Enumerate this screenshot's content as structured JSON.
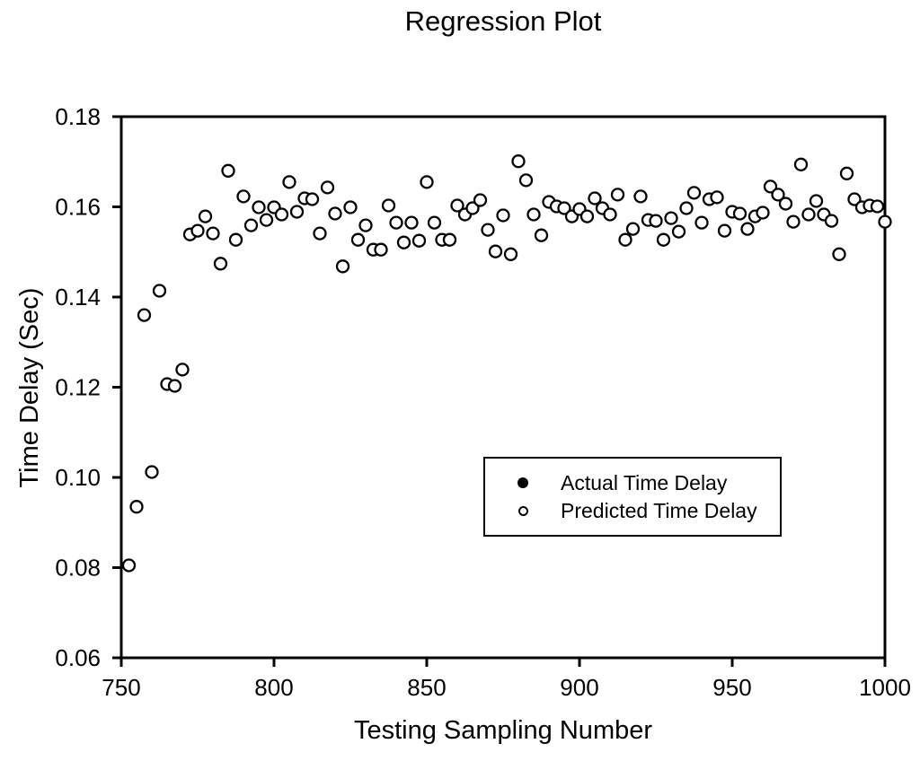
{
  "colors": {
    "foreground": "#000000",
    "background": "#ffffff"
  },
  "chart_data": {
    "type": "scatter",
    "title": "Regression Plot",
    "xlabel": "Testing Sampling Number",
    "ylabel": "Time Delay (Sec)",
    "xlim": [
      750,
      1000
    ],
    "ylim": [
      0.06,
      0.18
    ],
    "x_ticks": [
      750,
      800,
      850,
      900,
      950,
      1000
    ],
    "y_ticks": [
      0.18,
      0.16,
      0.14,
      0.12,
      0.1,
      0.08,
      0.06
    ],
    "y_tick_labels": [
      "0.18",
      "0.16",
      "0.14",
      "0.12",
      "0.10",
      "0.08",
      "0.06"
    ],
    "grid": false,
    "legend_position": "inside-center-right",
    "series": [
      {
        "name": "Actual Time Delay",
        "marker": "filled-circle",
        "points_visible": false,
        "x": [],
        "y": []
      },
      {
        "name": "Predicted Time Delay",
        "marker": "open-circle",
        "points_visible": true,
        "x": [
          752.5,
          755,
          757.5,
          760,
          762.5,
          765,
          767.5,
          770,
          772.5,
          775,
          777.5,
          780,
          782.5,
          785,
          787.5,
          790,
          792.5,
          795,
          797.5,
          800,
          802.5,
          805,
          807.5,
          810,
          812.5,
          815,
          817.5,
          820,
          822.5,
          825,
          827.5,
          830,
          832.5,
          835,
          837.5,
          840,
          842.5,
          845,
          847.5,
          850,
          852.5,
          855,
          857.5,
          860,
          862.5,
          865,
          867.5,
          870,
          872.5,
          875,
          877.5,
          880,
          882.5,
          885,
          887.5,
          890,
          892.5,
          895,
          897.5,
          900,
          902.5,
          905,
          907.5,
          910,
          912.5,
          915,
          917.5,
          920,
          922.5,
          925,
          927.5,
          930,
          932.5,
          935,
          937.5,
          940,
          942.5,
          945,
          947.5,
          950,
          952.5,
          955,
          957.5,
          960,
          962.5,
          965,
          967.5,
          970,
          972.5,
          975,
          977.5,
          980,
          982.5,
          985,
          987.5,
          990,
          992.5,
          995,
          997.5,
          1000
        ],
        "y": [
          0.0805,
          0.0935,
          0.136,
          0.1012,
          0.1414,
          0.1207,
          0.1203,
          0.1239,
          0.1539,
          0.1547,
          0.1579,
          0.1541,
          0.1474,
          0.168,
          0.1527,
          0.1623,
          0.1559,
          0.1599,
          0.1571,
          0.1599,
          0.1583,
          0.1655,
          0.1589,
          0.1619,
          0.1617,
          0.1541,
          0.1643,
          0.1585,
          0.1468,
          0.1599,
          0.1527,
          0.1559,
          0.1505,
          0.1505,
          0.1603,
          0.1565,
          0.1521,
          0.1565,
          0.1525,
          0.1655,
          0.1565,
          0.1527,
          0.1527,
          0.1603,
          0.1583,
          0.1597,
          0.1615,
          0.1549,
          0.1501,
          0.1581,
          0.1495,
          0.1701,
          0.1659,
          0.1583,
          0.1537,
          0.1611,
          0.1601,
          0.1597,
          0.1579,
          0.1595,
          0.1579,
          0.1619,
          0.1597,
          0.1583,
          0.1627,
          0.1527,
          0.1551,
          0.1623,
          0.1571,
          0.1569,
          0.1527,
          0.1575,
          0.1545,
          0.1597,
          0.1631,
          0.1565,
          0.1617,
          0.1621,
          0.1547,
          0.1589,
          0.1585,
          0.1551,
          0.1579,
          0.1587,
          0.1645,
          0.1627,
          0.1607,
          0.1567,
          0.1694,
          0.1583,
          0.1613,
          0.1583,
          0.1569,
          0.1495,
          0.1674,
          0.1617,
          0.1599,
          0.1603,
          0.1601,
          0.1567
        ]
      }
    ]
  }
}
